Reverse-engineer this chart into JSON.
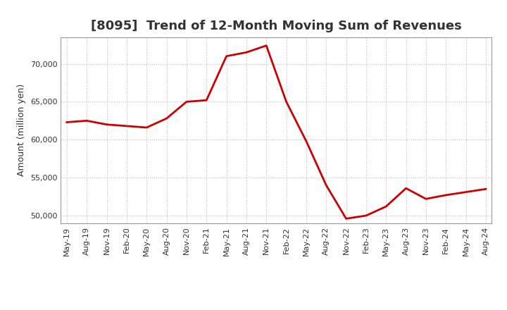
{
  "title": "[8095]  Trend of 12-Month Moving Sum of Revenues",
  "ylabel": "Amount (million yen)",
  "line_color": "#cc0000",
  "background_color": "#ffffff",
  "plot_bg_color": "#ffffff",
  "ylim": [
    49000,
    73500
  ],
  "yticks": [
    50000,
    55000,
    60000,
    65000,
    70000
  ],
  "x_labels": [
    "May-19",
    "Aug-19",
    "Nov-19",
    "Feb-20",
    "May-20",
    "Aug-20",
    "Nov-20",
    "Feb-21",
    "May-21",
    "Aug-21",
    "Nov-21",
    "Feb-22",
    "May-22",
    "Aug-22",
    "Nov-22",
    "Feb-23",
    "May-23",
    "Aug-23",
    "Nov-23",
    "Feb-24",
    "May-24",
    "Aug-24"
  ],
  "values": [
    62300,
    62500,
    62000,
    61800,
    61600,
    62800,
    65000,
    65200,
    71000,
    71500,
    72400,
    65000,
    59800,
    54000,
    49600,
    50000,
    51200,
    53600,
    52200,
    52700,
    53100,
    53500
  ],
  "title_fontsize": 13,
  "title_color": "#333333",
  "ylabel_fontsize": 9,
  "tick_fontsize": 8,
  "line_width": 2.0,
  "grid_color": "#bbbbbb",
  "grid_linestyle": ":",
  "grid_linewidth": 0.8,
  "spine_color": "#999999",
  "figsize": [
    7.2,
    4.4
  ],
  "dpi": 100
}
